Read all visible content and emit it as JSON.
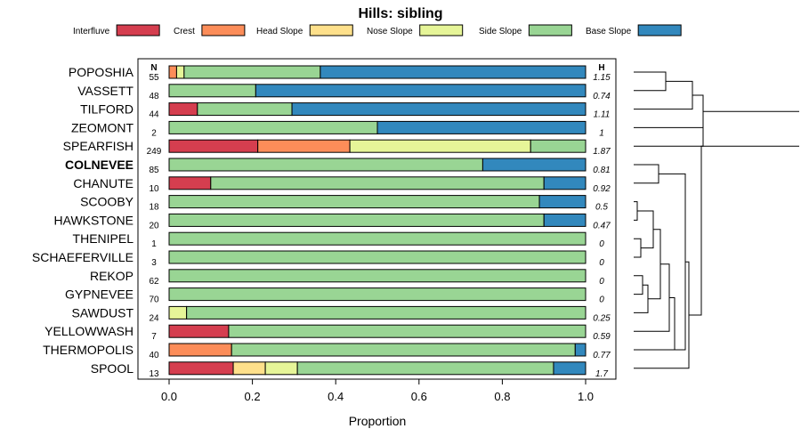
{
  "chart_data": {
    "type": "bar",
    "orientation": "horizontal",
    "stacked": true,
    "title": "Hills: sibling",
    "xlabel": "Proportion",
    "xlim": [
      0,
      1
    ],
    "x_ticks": [
      "0.0",
      "0.2",
      "0.4",
      "0.6",
      "0.8",
      "1.0"
    ],
    "n_header": "N",
    "h_header": "H",
    "legend": [
      {
        "name": "Interfluve",
        "color": "#d53e4f"
      },
      {
        "name": "Crest",
        "color": "#fc8d59"
      },
      {
        "name": "Head Slope",
        "color": "#fee08b"
      },
      {
        "name": "Nose Slope",
        "color": "#e6f598"
      },
      {
        "name": "Side Slope",
        "color": "#99d594"
      },
      {
        "name": "Base Slope",
        "color": "#3288bd"
      }
    ],
    "rows": [
      {
        "name": "POPOSHIA",
        "n": "55",
        "h": "1.15",
        "bold": false,
        "values": [
          0,
          0.018,
          0,
          0.018,
          0.327,
          0.637
        ]
      },
      {
        "name": "VASSETT",
        "n": "48",
        "h": "0.74",
        "bold": false,
        "values": [
          0,
          0,
          0,
          0,
          0.208,
          0.792
        ]
      },
      {
        "name": "TILFORD",
        "n": "44",
        "h": "1.11",
        "bold": false,
        "values": [
          0.068,
          0,
          0,
          0,
          0.227,
          0.705
        ]
      },
      {
        "name": "ZEOMONT",
        "n": "2",
        "h": "1",
        "bold": false,
        "values": [
          0,
          0,
          0,
          0,
          0.5,
          0.5
        ]
      },
      {
        "name": "SPEARFISH",
        "n": "249",
        "h": "1.87",
        "bold": false,
        "values": [
          0.213,
          0.221,
          0,
          0.434,
          0.132,
          0
        ]
      },
      {
        "name": "COLNEVEE",
        "n": "85",
        "h": "0.81",
        "bold": true,
        "values": [
          0,
          0,
          0,
          0,
          0.753,
          0.247
        ]
      },
      {
        "name": "CHANUTE",
        "n": "10",
        "h": "0.92",
        "bold": false,
        "values": [
          0.1,
          0,
          0,
          0,
          0.8,
          0.1
        ]
      },
      {
        "name": "SCOOBY",
        "n": "18",
        "h": "0.5",
        "bold": false,
        "values": [
          0,
          0,
          0,
          0,
          0.889,
          0.111
        ]
      },
      {
        "name": "HAWKSTONE",
        "n": "20",
        "h": "0.47",
        "bold": false,
        "values": [
          0,
          0,
          0,
          0,
          0.9,
          0.1
        ]
      },
      {
        "name": "THENIPEL",
        "n": "1",
        "h": "0",
        "bold": false,
        "values": [
          0,
          0,
          0,
          0,
          1,
          0
        ]
      },
      {
        "name": "SCHAEFERVILLE",
        "n": "3",
        "h": "0",
        "bold": false,
        "values": [
          0,
          0,
          0,
          0,
          1,
          0
        ]
      },
      {
        "name": "REKOP",
        "n": "62",
        "h": "0",
        "bold": false,
        "values": [
          0,
          0,
          0,
          0,
          1,
          0
        ]
      },
      {
        "name": "GYPNEVEE",
        "n": "70",
        "h": "0",
        "bold": false,
        "values": [
          0,
          0,
          0,
          0,
          1,
          0
        ]
      },
      {
        "name": "SAWDUST",
        "n": "24",
        "h": "0.25",
        "bold": false,
        "values": [
          0,
          0,
          0,
          0.042,
          0.958,
          0
        ]
      },
      {
        "name": "YELLOWWASH",
        "n": "7",
        "h": "0.59",
        "bold": false,
        "values": [
          0.143,
          0,
          0,
          0,
          0.857,
          0
        ]
      },
      {
        "name": "THERMOPOLIS",
        "n": "40",
        "h": "0.77",
        "bold": false,
        "values": [
          0,
          0.15,
          0,
          0,
          0.825,
          0.025
        ]
      },
      {
        "name": "SPOOL",
        "n": "13",
        "h": "1.7",
        "bold": false,
        "values": [
          0.154,
          0,
          0.077,
          0.077,
          0.615,
          0.077
        ]
      }
    ]
  }
}
